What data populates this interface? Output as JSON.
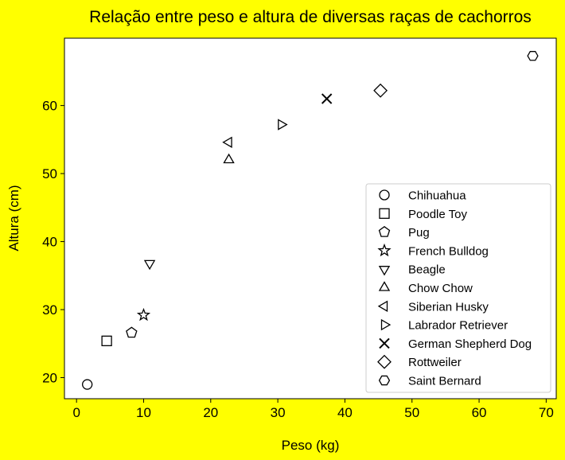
{
  "colors": {
    "figure_background": "#ffff00",
    "plot_background": "#ffffff",
    "marker_stroke": "#000000"
  },
  "chart_data": {
    "type": "scatter",
    "title": "Relação entre peso e altura de diversas raças de cachorros",
    "xlabel": "Peso (kg)",
    "ylabel": "Altura (cm)",
    "xlim": [
      -1.8,
      71.5
    ],
    "ylim": [
      16.9,
      69.9
    ],
    "xticks": [
      0,
      10,
      20,
      30,
      40,
      50,
      60,
      70
    ],
    "yticks": [
      20,
      30,
      40,
      50,
      60
    ],
    "grid": false,
    "legend_position": "lower right",
    "series": [
      {
        "name": "Chihuahua",
        "marker": "circle",
        "x": 1.6,
        "y": 19.0
      },
      {
        "name": "Poodle Toy",
        "marker": "square",
        "x": 4.5,
        "y": 25.4
      },
      {
        "name": "Pug",
        "marker": "pentagon",
        "x": 8.2,
        "y": 26.6
      },
      {
        "name": "French Bulldog",
        "marker": "star",
        "x": 10.0,
        "y": 29.2
      },
      {
        "name": "Beagle",
        "marker": "triangle-down",
        "x": 10.9,
        "y": 36.8
      },
      {
        "name": "Chow Chow",
        "marker": "triangle-up",
        "x": 22.7,
        "y": 52.0
      },
      {
        "name": "Siberian Husky",
        "marker": "triangle-left",
        "x": 22.7,
        "y": 54.6
      },
      {
        "name": "Labrador Retriever",
        "marker": "triangle-right",
        "x": 30.5,
        "y": 57.2
      },
      {
        "name": "German Shepherd Dog",
        "marker": "x",
        "x": 37.3,
        "y": 61.0
      },
      {
        "name": "Rottweiler",
        "marker": "diamond",
        "x": 45.3,
        "y": 62.2
      },
      {
        "name": "Saint Bernard",
        "marker": "hexagon",
        "x": 68.0,
        "y": 67.3
      }
    ]
  }
}
